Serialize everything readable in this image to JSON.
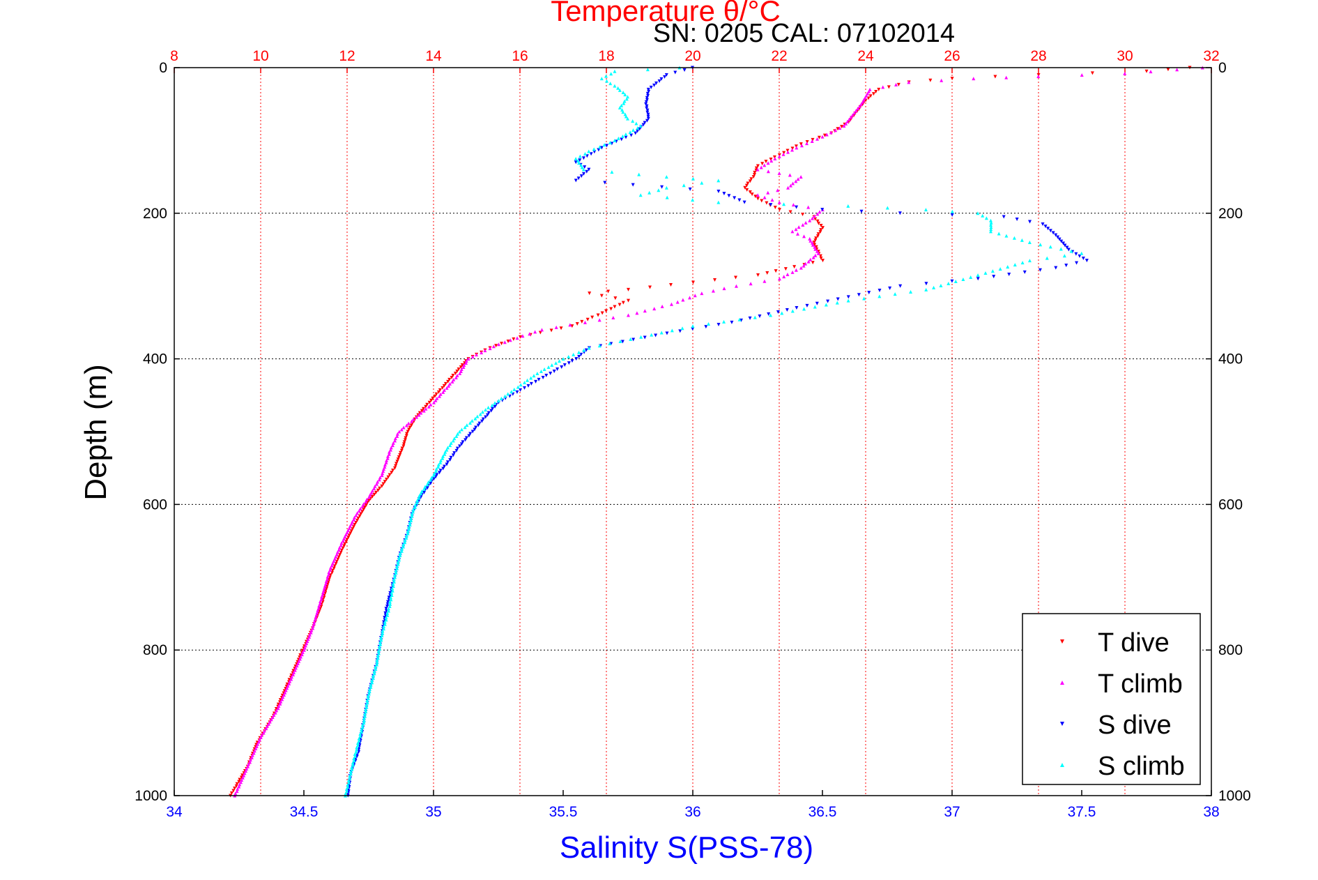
{
  "chart_data": {
    "type": "scatter",
    "title": "Temperature θ/°C",
    "subtitle": "SN: 0205  CAL: 07102014",
    "xlabel": "Salinity S(PSS-78)",
    "ylabel": "Depth (m)",
    "x_bottom": {
      "label": "Salinity S(PSS-78)",
      "lim": [
        34,
        38
      ],
      "ticks": [
        "34",
        "34.5",
        "35",
        "35.5",
        "36",
        "36.5",
        "37",
        "37.5",
        "38"
      ],
      "color": "#0000ff"
    },
    "x_top": {
      "label": "Temperature θ/°C",
      "lim": [
        8,
        32
      ],
      "ticks": [
        "8",
        "10",
        "12",
        "14",
        "16",
        "18",
        "20",
        "22",
        "24",
        "26",
        "28",
        "30",
        "32"
      ],
      "color": "#ff0000"
    },
    "y": {
      "label": "Depth (m)",
      "lim": [
        0,
        1000
      ],
      "reversed": true,
      "ticks": [
        "0",
        "200",
        "400",
        "600",
        "800",
        "1000"
      ]
    },
    "grid": true,
    "legend_position": "bottom-right",
    "series": [
      {
        "name": "T dive",
        "axis": "temperature",
        "color": "#ff0000",
        "marker": "triangle-down",
        "points": [
          [
            31.5,
            0
          ],
          [
            30.5,
            5
          ],
          [
            28,
            10
          ],
          [
            26,
            15
          ],
          [
            25,
            20
          ],
          [
            24.3,
            30
          ],
          [
            24,
            45
          ],
          [
            23.8,
            60
          ],
          [
            23.6,
            75
          ],
          [
            23.2,
            90
          ],
          [
            22.5,
            105
          ],
          [
            22,
            120
          ],
          [
            21.5,
            135
          ],
          [
            21.4,
            150
          ],
          [
            21.2,
            165
          ],
          [
            21.5,
            180
          ],
          [
            22,
            195
          ],
          [
            22.8,
            205
          ],
          [
            23,
            220
          ],
          [
            22.8,
            240
          ],
          [
            23,
            265
          ],
          [
            21.5,
            285
          ],
          [
            20,
            295
          ],
          [
            18.5,
            305
          ],
          [
            17.6,
            310
          ],
          [
            18.5,
            320
          ],
          [
            17.8,
            340
          ],
          [
            17.2,
            355
          ],
          [
            16,
            370
          ],
          [
            15.3,
            385
          ],
          [
            14.8,
            400
          ],
          [
            14.5,
            420
          ],
          [
            14.2,
            440
          ],
          [
            13.9,
            460
          ],
          [
            13.6,
            480
          ],
          [
            13.4,
            500
          ],
          [
            13.3,
            520
          ],
          [
            13.1,
            550
          ],
          [
            12.8,
            575
          ],
          [
            12.5,
            595
          ],
          [
            12.2,
            625
          ],
          [
            11.9,
            660
          ],
          [
            11.6,
            700
          ],
          [
            11.4,
            740
          ],
          [
            11.2,
            770
          ],
          [
            10.9,
            810
          ],
          [
            10.6,
            850
          ],
          [
            10.3,
            890
          ],
          [
            9.9,
            930
          ],
          [
            9.7,
            960
          ],
          [
            9.4,
            990
          ],
          [
            9.3,
            1000
          ]
        ]
      },
      {
        "name": "T climb",
        "axis": "temperature",
        "color": "#ff00ff",
        "marker": "triangle-up",
        "points": [
          [
            31.8,
            0
          ],
          [
            30,
            8
          ],
          [
            28,
            12
          ],
          [
            26.5,
            15
          ],
          [
            25,
            20
          ],
          [
            24.1,
            30
          ],
          [
            23.9,
            50
          ],
          [
            23.7,
            65
          ],
          [
            23.5,
            80
          ],
          [
            23,
            95
          ],
          [
            22.4,
            110
          ],
          [
            21.9,
            125
          ],
          [
            21.5,
            140
          ],
          [
            22,
            145
          ],
          [
            22.5,
            150
          ],
          [
            22.2,
            165
          ],
          [
            21.5,
            175
          ],
          [
            22,
            185
          ],
          [
            23,
            195
          ],
          [
            22.7,
            210
          ],
          [
            22.3,
            225
          ],
          [
            22.7,
            235
          ],
          [
            22.9,
            255
          ],
          [
            22.5,
            275
          ],
          [
            22,
            290
          ],
          [
            21,
            300
          ],
          [
            20.2,
            310
          ],
          [
            19.5,
            325
          ],
          [
            18.5,
            340
          ],
          [
            17.5,
            350
          ],
          [
            16.5,
            360
          ],
          [
            15.5,
            380
          ],
          [
            14.8,
            400
          ],
          [
            14.6,
            420
          ],
          [
            14.3,
            440
          ],
          [
            14,
            460
          ],
          [
            13.6,
            480
          ],
          [
            13.2,
            500
          ],
          [
            13,
            525
          ],
          [
            12.8,
            560
          ],
          [
            12.5,
            590
          ],
          [
            12.2,
            615
          ],
          [
            11.9,
            650
          ],
          [
            11.6,
            690
          ],
          [
            11.4,
            730
          ],
          [
            11.2,
            770
          ],
          [
            11,
            800
          ],
          [
            10.7,
            840
          ],
          [
            10.4,
            880
          ],
          [
            10,
            920
          ],
          [
            9.7,
            960
          ],
          [
            9.4,
            1000
          ]
        ]
      },
      {
        "name": "S dive",
        "axis": "salinity",
        "color": "#0000ff",
        "marker": "triangle-down",
        "points": [
          [
            36,
            0
          ],
          [
            35.9,
            10
          ],
          [
            35.83,
            30
          ],
          [
            35.82,
            50
          ],
          [
            35.83,
            70
          ],
          [
            35.78,
            90
          ],
          [
            35.65,
            110
          ],
          [
            35.55,
            130
          ],
          [
            35.6,
            140
          ],
          [
            35.55,
            155
          ],
          [
            36.1,
            170
          ],
          [
            36.2,
            185
          ],
          [
            36.5,
            195
          ],
          [
            36.8,
            200
          ],
          [
            37.2,
            205
          ],
          [
            37.35,
            215
          ],
          [
            37.4,
            230
          ],
          [
            37.45,
            250
          ],
          [
            37.52,
            265
          ],
          [
            37.4,
            275
          ],
          [
            37.1,
            290
          ],
          [
            36.8,
            300
          ],
          [
            36.6,
            315
          ],
          [
            36.4,
            330
          ],
          [
            36.15,
            350
          ],
          [
            35.9,
            365
          ],
          [
            35.6,
            385
          ],
          [
            35.55,
            400
          ],
          [
            35.45,
            420
          ],
          [
            35.35,
            440
          ],
          [
            35.25,
            460
          ],
          [
            35.2,
            480
          ],
          [
            35.15,
            500
          ],
          [
            35.1,
            520
          ],
          [
            35.05,
            545
          ],
          [
            35,
            565
          ],
          [
            34.95,
            590
          ],
          [
            34.92,
            610
          ],
          [
            34.9,
            640
          ],
          [
            34.87,
            670
          ],
          [
            34.85,
            700
          ],
          [
            34.82,
            740
          ],
          [
            34.8,
            780
          ],
          [
            34.78,
            820
          ],
          [
            34.75,
            860
          ],
          [
            34.73,
            900
          ],
          [
            34.71,
            940
          ],
          [
            34.68,
            970
          ],
          [
            34.67,
            1000
          ]
        ]
      },
      {
        "name": "S climb",
        "axis": "salinity",
        "color": "#00ffff",
        "marker": "triangle-up",
        "points": [
          [
            35.95,
            0
          ],
          [
            35.7,
            5
          ],
          [
            35.65,
            15
          ],
          [
            35.7,
            25
          ],
          [
            35.75,
            40
          ],
          [
            35.72,
            55
          ],
          [
            35.75,
            70
          ],
          [
            35.8,
            80
          ],
          [
            35.7,
            100
          ],
          [
            35.6,
            115
          ],
          [
            35.55,
            125
          ],
          [
            35.58,
            140
          ],
          [
            35.9,
            150
          ],
          [
            36.1,
            155
          ],
          [
            35.9,
            165
          ],
          [
            35.8,
            175
          ],
          [
            36.1,
            185
          ],
          [
            36.6,
            190
          ],
          [
            36.9,
            195
          ],
          [
            37.1,
            200
          ],
          [
            37.15,
            210
          ],
          [
            37.15,
            225
          ],
          [
            37.3,
            240
          ],
          [
            37.5,
            255
          ],
          [
            37.3,
            265
          ],
          [
            37.1,
            285
          ],
          [
            36.9,
            305
          ],
          [
            36.6,
            320
          ],
          [
            36.3,
            340
          ],
          [
            36,
            355
          ],
          [
            35.8,
            370
          ],
          [
            35.6,
            385
          ],
          [
            35.5,
            400
          ],
          [
            35.4,
            420
          ],
          [
            35.3,
            445
          ],
          [
            35.2,
            470
          ],
          [
            35.1,
            500
          ],
          [
            35.05,
            525
          ],
          [
            35,
            560
          ],
          [
            34.95,
            585
          ],
          [
            34.92,
            610
          ],
          [
            34.9,
            640
          ],
          [
            34.87,
            670
          ],
          [
            34.85,
            700
          ],
          [
            34.83,
            740
          ],
          [
            34.8,
            780
          ],
          [
            34.78,
            820
          ],
          [
            34.75,
            860
          ],
          [
            34.73,
            900
          ],
          [
            34.7,
            940
          ],
          [
            34.68,
            970
          ],
          [
            34.66,
            1000
          ]
        ]
      }
    ]
  }
}
